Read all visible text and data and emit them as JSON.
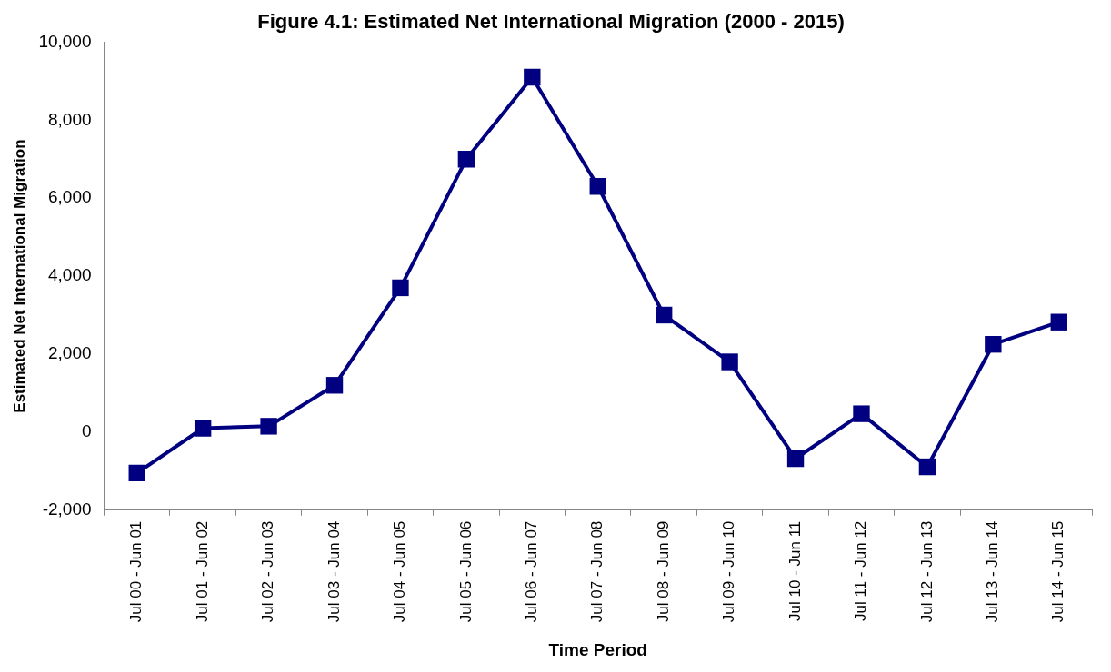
{
  "chart_data": {
    "type": "line",
    "title": "Figure 4.1: Estimated Net International Migration (2000 - 2015)",
    "xlabel": "Time Period",
    "ylabel": "Estimated Net International Migration",
    "categories": [
      "Jul 00 - Jun 01",
      "Jul 01 - Jun 02",
      "Jul 02 - Jun 03",
      "Jul 03 - Jun 04",
      "Jul 04 - Jun 05",
      "Jul 05 - Jun 06",
      "Jul 06 - Jun 07",
      "Jul 07 - Jun 08",
      "Jul 08 - Jun 09",
      "Jul 09 - Jun 10",
      "Jul 10 - Jun 11",
      "Jul 11 - Jun 12",
      "Jul 12 - Jun 13",
      "Jul 13 - Jun 14",
      "Jul 14 - Jun 15"
    ],
    "series": [
      {
        "color": "#000080",
        "values": [
          -1050,
          100,
          150,
          1200,
          3700,
          7000,
          9100,
          6300,
          3000,
          1800,
          -680,
          470,
          -890,
          2250,
          2820
        ]
      }
    ],
    "ylim": [
      -2000,
      10000
    ],
    "yticks": [
      {
        "value": -2000,
        "label": "-2,000"
      },
      {
        "value": 0,
        "label": "0"
      },
      {
        "value": 2000,
        "label": "2,000"
      },
      {
        "value": 4000,
        "label": "4,000"
      },
      {
        "value": 6000,
        "label": "6,000"
      },
      {
        "value": 8000,
        "label": "8,000"
      },
      {
        "value": 10000,
        "label": "10,000"
      }
    ],
    "grid": false,
    "legend": false,
    "marker": "square",
    "line_style": "solid"
  }
}
